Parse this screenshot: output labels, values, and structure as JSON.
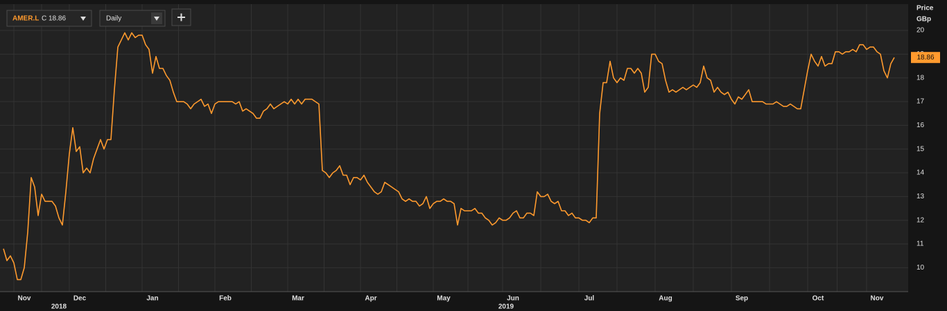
{
  "chart_data": {
    "type": "line",
    "ticker_prefix": "C",
    "interval": "Daily",
    "ylabel": "Price",
    "yunit": "GBp",
    "ylim": [
      9.05,
      21.05
    ],
    "yticks": [
      10,
      11,
      12,
      13,
      14,
      15,
      16,
      17,
      18,
      19,
      20
    ],
    "grid": true,
    "categories": [
      null,
      null,
      null,
      null,
      null,
      null,
      "Nov",
      null,
      null,
      null,
      null,
      null,
      null,
      null,
      null,
      null,
      null,
      null,
      null,
      null,
      null,
      null,
      "Dec",
      null,
      null,
      null,
      null,
      null,
      null,
      null,
      null,
      null,
      null,
      null,
      null,
      null,
      null,
      null,
      null,
      null,
      null,
      null,
      null,
      "Jan",
      null,
      null,
      null,
      null,
      null,
      null,
      null,
      null,
      null,
      null,
      null,
      null,
      null,
      null,
      null,
      null,
      null,
      null,
      null,
      null,
      "Feb",
      null,
      null,
      null,
      null,
      null,
      null,
      null,
      null,
      null,
      null,
      null,
      null,
      null,
      null,
      null,
      null,
      null,
      null,
      null,
      null,
      "Mar",
      null,
      null,
      null,
      null,
      null,
      null,
      null,
      null,
      null,
      null,
      null,
      null,
      null,
      null,
      null,
      null,
      null,
      null,
      null,
      null,
      "Apr",
      null,
      null,
      null,
      null,
      null,
      null,
      null,
      null,
      null,
      null,
      null,
      null,
      null,
      null,
      null,
      null,
      null,
      null,
      null,
      null,
      "May",
      null,
      null,
      null,
      null,
      null,
      null,
      null,
      null,
      null,
      null,
      null,
      null,
      null,
      null,
      null,
      null,
      null,
      null,
      null,
      "Jun",
      null,
      null,
      null,
      null,
      null,
      null,
      null,
      null,
      null,
      null,
      null,
      null,
      null,
      null,
      null,
      null,
      null,
      null,
      null,
      null,
      null,
      "Jul",
      null,
      null,
      null,
      null,
      null,
      null,
      null,
      null,
      null,
      null,
      null,
      null,
      null,
      null,
      null,
      null,
      null,
      null,
      null,
      null,
      null,
      "Aug",
      null,
      null,
      null,
      null,
      null,
      null,
      null,
      null,
      null,
      null,
      null,
      null,
      null,
      null,
      null,
      null,
      null,
      null,
      null,
      null,
      null,
      "Sep",
      null,
      null,
      null,
      null,
      null,
      null,
      null,
      null,
      null,
      null,
      null,
      null,
      null,
      null,
      null,
      null,
      null,
      null,
      null,
      null,
      null,
      "Oct",
      null,
      null,
      null,
      null,
      null,
      null,
      null,
      null,
      null,
      null,
      null,
      null,
      null,
      null,
      null,
      null,
      "Nov",
      null,
      null,
      null,
      null,
      null
    ],
    "x_groups": [
      null,
      null,
      null,
      null,
      null,
      null,
      null,
      null,
      null,
      null,
      null,
      null,
      null,
      null,
      null,
      null,
      "2018",
      null,
      null,
      null,
      null,
      null,
      null,
      null,
      null,
      null,
      null,
      null,
      null,
      null,
      null,
      null,
      null,
      null,
      null,
      null,
      null,
      null,
      null,
      null,
      null,
      null,
      null,
      null,
      null,
      null,
      null,
      null,
      null,
      null,
      null,
      null,
      null,
      null,
      null,
      null,
      null,
      null,
      null,
      null,
      null,
      null,
      null,
      null,
      null,
      null,
      null,
      null,
      null,
      null,
      null,
      null,
      null,
      null,
      null,
      null,
      null,
      null,
      null,
      null,
      null,
      null,
      null,
      null,
      null,
      null,
      null,
      null,
      null,
      null,
      null,
      null,
      null,
      null,
      null,
      null,
      null,
      null,
      null,
      null,
      null,
      null,
      null,
      null,
      null,
      null,
      null,
      null,
      null,
      null,
      null,
      null,
      null,
      null,
      null,
      null,
      null,
      null,
      null,
      null,
      null,
      null,
      null,
      null,
      null,
      null,
      null,
      null,
      null,
      null,
      null,
      null,
      null,
      null,
      null,
      null,
      null,
      null,
      null,
      null,
      null,
      null,
      null,
      null,
      null,
      "2019",
      null,
      null,
      null,
      null,
      null,
      null,
      null,
      null,
      null,
      null,
      null,
      null,
      null,
      null,
      null,
      null,
      null,
      null,
      null,
      null,
      null,
      null,
      null,
      null,
      null,
      null,
      null,
      null,
      null,
      null,
      null,
      null,
      null,
      null,
      null,
      null,
      null,
      null,
      null,
      null,
      null,
      null,
      null,
      null,
      null,
      null,
      null,
      null,
      null,
      null,
      null,
      null,
      null,
      null,
      null,
      null,
      null,
      null,
      null,
      null,
      null,
      null,
      null,
      null,
      null,
      null,
      null,
      null,
      null,
      null,
      null,
      null,
      null,
      null,
      null,
      null,
      null,
      null,
      null,
      null,
      null,
      null,
      null,
      null,
      null,
      null,
      null,
      null,
      null,
      null,
      null,
      null,
      null,
      null,
      null,
      null,
      null,
      null,
      null,
      null,
      null,
      null,
      null,
      null,
      null,
      null,
      null,
      null,
      null,
      null,
      null,
      null
    ],
    "series": [
      {
        "name": "AMER.L",
        "color": "#ff9a2e",
        "values": [
          10.8,
          10.3,
          10.5,
          10.2,
          9.5,
          9.5,
          10.0,
          11.5,
          13.8,
          13.4,
          12.2,
          13.1,
          12.8,
          12.8,
          12.8,
          12.6,
          12.1,
          11.8,
          13.2,
          14.8,
          15.9,
          14.9,
          15.1,
          14.0,
          14.2,
          14.0,
          14.6,
          15.0,
          15.4,
          15.0,
          15.4,
          15.4,
          17.5,
          19.3,
          19.6,
          19.9,
          19.6,
          19.9,
          19.7,
          19.8,
          19.8,
          19.4,
          19.2,
          18.2,
          18.9,
          18.4,
          18.4,
          18.1,
          17.9,
          17.4,
          17.0,
          17.0,
          17.0,
          16.9,
          16.7,
          16.9,
          17.0,
          17.1,
          16.8,
          16.9,
          16.5,
          16.9,
          17.0,
          17.0,
          17.0,
          17.0,
          17.0,
          16.9,
          17.0,
          16.6,
          16.7,
          16.6,
          16.5,
          16.3,
          16.3,
          16.6,
          16.7,
          16.9,
          16.7,
          16.8,
          16.9,
          17.0,
          16.9,
          17.1,
          16.9,
          17.1,
          16.9,
          17.1,
          17.1,
          17.1,
          17.0,
          16.9,
          14.1,
          14.0,
          13.8,
          14.0,
          14.1,
          14.3,
          13.9,
          13.9,
          13.5,
          13.8,
          13.8,
          13.7,
          13.9,
          13.6,
          13.4,
          13.2,
          13.1,
          13.2,
          13.6,
          13.5,
          13.4,
          13.3,
          13.2,
          12.9,
          12.8,
          12.9,
          12.8,
          12.8,
          12.6,
          12.7,
          13.0,
          12.5,
          12.7,
          12.8,
          12.8,
          12.9,
          12.8,
          12.8,
          12.7,
          11.8,
          12.5,
          12.4,
          12.4,
          12.4,
          12.5,
          12.3,
          12.3,
          12.1,
          12.0,
          11.8,
          11.9,
          12.1,
          12.0,
          12.0,
          12.1,
          12.3,
          12.4,
          12.1,
          12.1,
          12.3,
          12.3,
          12.2,
          13.2,
          13.0,
          13.0,
          13.1,
          12.8,
          12.7,
          12.8,
          12.4,
          12.4,
          12.2,
          12.3,
          12.1,
          12.1,
          12.0,
          12.0,
          11.9,
          12.1,
          12.1,
          16.5,
          17.8,
          17.8,
          18.7,
          18.0,
          17.8,
          18.0,
          17.9,
          18.4,
          18.4,
          18.2,
          18.4,
          18.2,
          17.4,
          17.6,
          19.0,
          19.0,
          18.7,
          18.6,
          17.9,
          17.4,
          17.5,
          17.4,
          17.5,
          17.6,
          17.5,
          17.6,
          17.7,
          17.6,
          17.8,
          18.5,
          18.0,
          17.9,
          17.4,
          17.6,
          17.4,
          17.3,
          17.4,
          17.1,
          16.9,
          17.2,
          17.1,
          17.3,
          17.5,
          17.0,
          17.0,
          17.0,
          17.0,
          16.9,
          16.9,
          16.9,
          17.0,
          16.9,
          16.8,
          16.8,
          16.9,
          16.8,
          16.7,
          16.7,
          17.5,
          18.3,
          19.0,
          18.7,
          18.5,
          18.9,
          18.5,
          18.6,
          18.6,
          19.1,
          19.1,
          19.0,
          19.1,
          19.1,
          19.2,
          19.1,
          19.4,
          19.4,
          19.2,
          19.3,
          19.3,
          19.1,
          19.0,
          18.3,
          18.0,
          18.6,
          18.86
        ]
      }
    ]
  }
}
